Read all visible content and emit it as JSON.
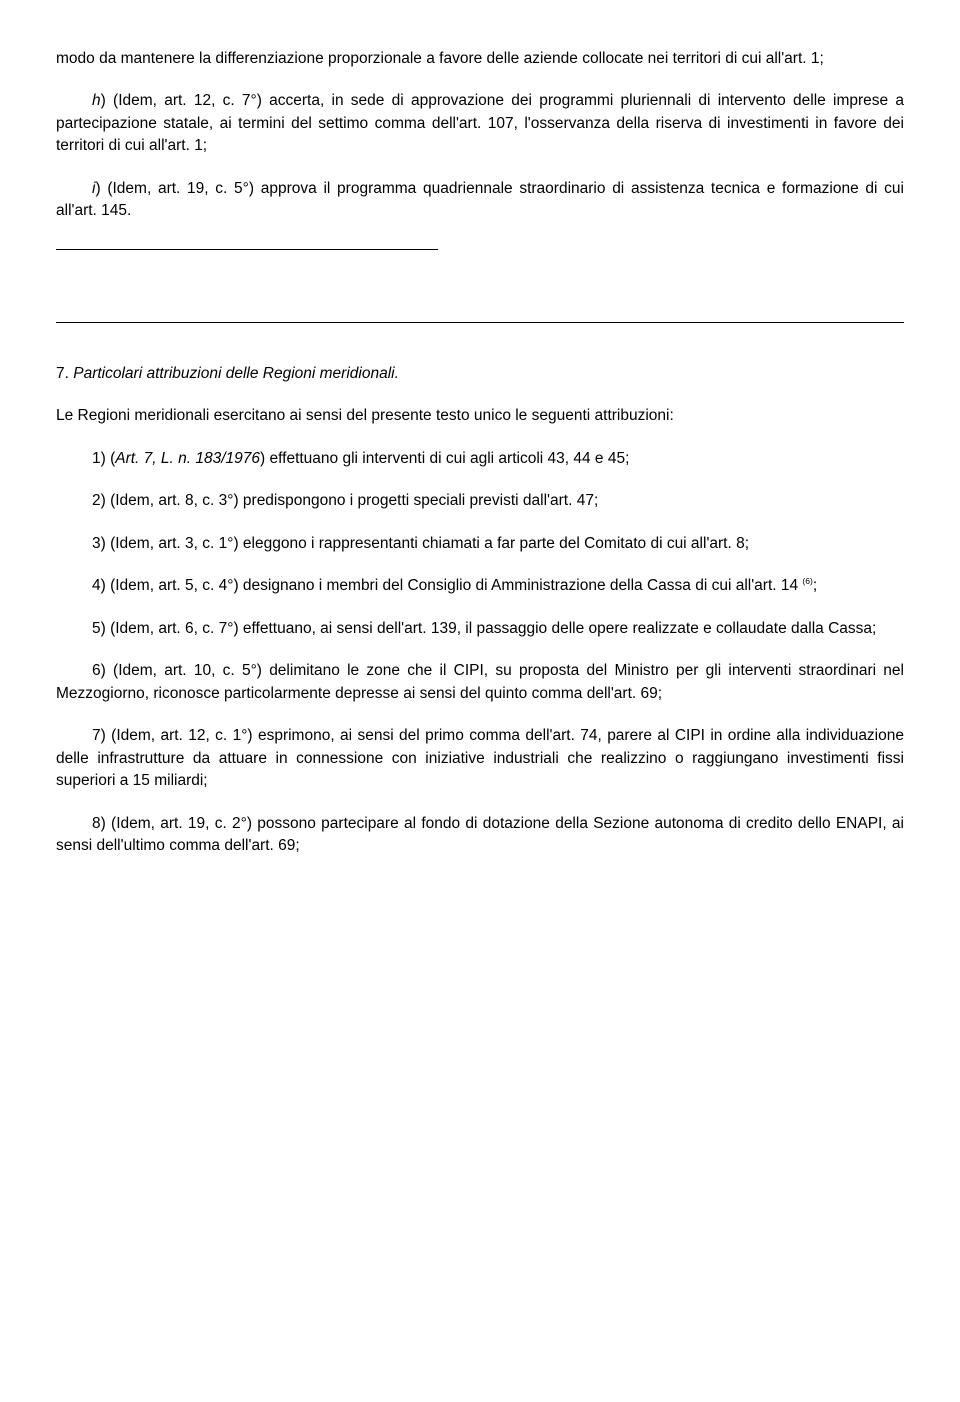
{
  "top_para": {
    "text": "modo da mantenere la differenziazione proporzionale a favore delle aziende collocate nei territori di cui all'art. 1;"
  },
  "item_h": {
    "prefix": "h",
    "text": ") (Idem, art. 12, c. 7°) accerta, in sede di approvazione dei programmi pluriennali di intervento delle imprese a partecipazione statale, ai termini del settimo comma dell'art. 107, l'osservanza della riserva di investimenti in favore dei territori di cui all'art. 1;"
  },
  "item_i": {
    "prefix": "i",
    "text": ") (Idem, art. 19, c. 5°) approva il programma quadriennale straordinario di assistenza tecnica e formazione di cui all'art. 145."
  },
  "section7": {
    "num": "7.",
    "title": " Particolari attribuzioni delle Regioni meridionali."
  },
  "section7_intro": "Le Regioni meridionali esercitano ai sensi del presente testo unico le seguenti attribuzioni:",
  "s7_1": {
    "lead": "1) (",
    "ital": "Art. 7, L. n. 183/1976",
    "tail": ") effettuano gli interventi di cui agli articoli 43, 44 e 45;"
  },
  "s7_2": "2) (Idem, art. 8, c. 3°) predispongono i progetti speciali previsti dall'art. 47;",
  "s7_3": "3) (Idem, art. 3, c. 1°) eleggono i rappresentanti chiamati a far parte del Comitato di cui all'art. 8;",
  "s7_4": {
    "a": "4) (Idem, art. 5, c. 4°) designano i membri del Consiglio di Amministrazione della Cassa di cui all'art. 14 ",
    "sup": "(6)",
    "b": ";"
  },
  "s7_5": "5) (Idem, art. 6, c. 7°) effettuano, ai sensi dell'art. 139, il passaggio delle opere realizzate e collaudate dalla Cassa;",
  "s7_6": "6) (Idem, art. 10, c. 5°) delimitano le zone che il CIPI, su proposta del Ministro per gli interventi straordinari nel Mezzogiorno, riconosce particolarmente depresse ai sensi del quinto comma dell'art. 69;",
  "s7_7": "7) (Idem, art. 12, c. 1°) esprimono, ai sensi del primo comma dell'art. 74, parere al CIPI in ordine alla individuazione delle infrastrutture da attuare in connessione con iniziative industriali che realizzino o raggiungano investimenti fissi superiori a 15 miliardi;",
  "s7_8": "8) (Idem, art. 19, c. 2°) possono partecipare al fondo di dotazione della Sezione autonoma di credito dello ENAPI, ai sensi dell'ultimo comma dell'art. 69;"
}
